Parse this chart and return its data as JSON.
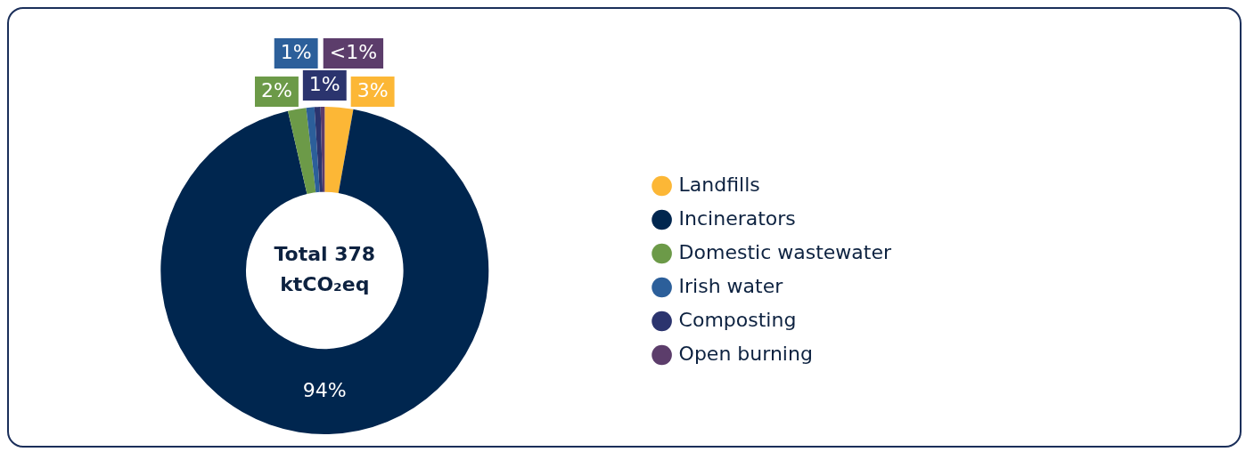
{
  "chart_data": {
    "type": "donut",
    "categories": [
      "Landfills",
      "Incinerators",
      "Domestic wastewater",
      "Irish water",
      "Composting",
      "Open burning"
    ],
    "values": [
      2.8,
      93.6,
      1.8,
      0.8,
      0.6,
      0.4
    ],
    "value_labels": [
      "3%",
      "94%",
      "2%",
      "1%",
      "1%",
      "<1%"
    ],
    "colors": [
      "#fcb736",
      "#00264f",
      "#6c9a48",
      "#2c5f9a",
      "#2b346e",
      "#5c3d6b"
    ],
    "annotations": [
      "Total 378 ktCO₂eq"
    ],
    "legend": "right"
  }
}
